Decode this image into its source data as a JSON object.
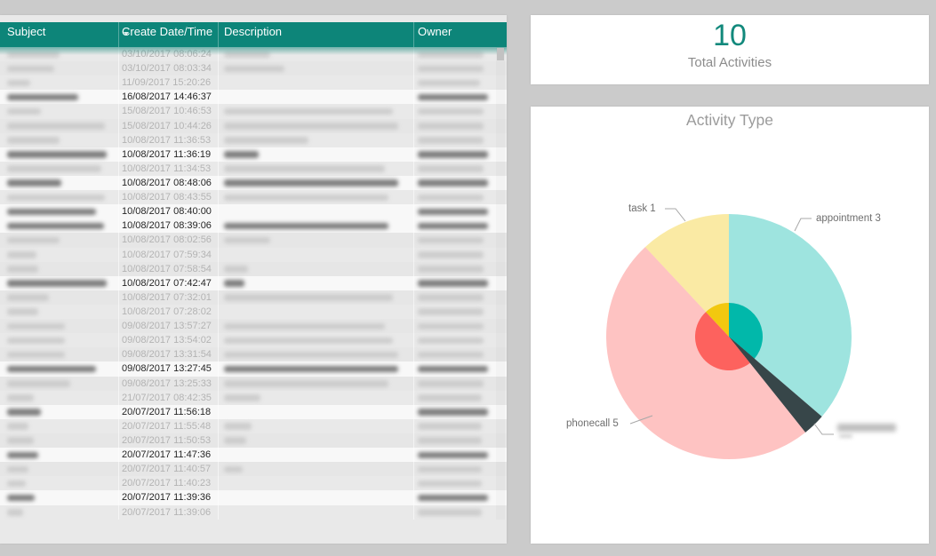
{
  "kpi": {
    "value": "10",
    "label": "Total Activities",
    "value_color": "#12897c"
  },
  "table": {
    "headers": {
      "subject": "Subject",
      "date": "Create Date/Time",
      "desc": "Description",
      "owner": "Owner"
    },
    "sorted_column": "Create Date/Time",
    "sort_direction": "descending",
    "header_color": "#0d8579",
    "note": "subject, description and owner cells are blurred/redacted in the source image; bar fields give redaction-bar widths as fractions, hl marks highlighted (white, dark-text) rows",
    "rows": [
      {
        "date": "03/10/2017 08:06:24",
        "hl": false,
        "subject_bar": 0.5,
        "desc_bar": 0.25,
        "owner_bar": 0.62
      },
      {
        "date": "03/10/2017 08:03:34",
        "hl": false,
        "subject_bar": 0.45,
        "desc_bar": 0.33,
        "owner_bar": 0.62
      },
      {
        "date": "11/09/2017 15:20:26",
        "hl": false,
        "subject_bar": 0.22,
        "desc_bar": 0,
        "owner_bar": 0.58
      },
      {
        "date": "16/08/2017 14:46:37",
        "hl": true,
        "subject_bar": 0.68,
        "desc_bar": 0,
        "owner_bar": 0.66
      },
      {
        "date": "15/08/2017 10:46:53",
        "hl": false,
        "subject_bar": 0.32,
        "desc_bar": 0.92,
        "owner_bar": 0.62
      },
      {
        "date": "15/08/2017 10:44:26",
        "hl": false,
        "subject_bar": 0.93,
        "desc_bar": 0.95,
        "owner_bar": 0.62
      },
      {
        "date": "10/08/2017 11:36:53",
        "hl": false,
        "subject_bar": 0.5,
        "desc_bar": 0.46,
        "owner_bar": 0.62
      },
      {
        "date": "10/08/2017 11:36:19",
        "hl": true,
        "subject_bar": 0.95,
        "desc_bar": 0.19,
        "owner_bar": 0.66
      },
      {
        "date": "10/08/2017 11:34:53",
        "hl": false,
        "subject_bar": 0.9,
        "desc_bar": 0.88,
        "owner_bar": 0.62
      },
      {
        "date": "10/08/2017 08:48:06",
        "hl": true,
        "subject_bar": 0.52,
        "desc_bar": 0.95,
        "owner_bar": 0.66
      },
      {
        "date": "10/08/2017 08:43:55",
        "hl": false,
        "subject_bar": 0.93,
        "desc_bar": 0.9,
        "owner_bar": 0.62
      },
      {
        "date": "10/08/2017 08:40:00",
        "hl": true,
        "subject_bar": 0.85,
        "desc_bar": 0,
        "owner_bar": 0.66
      },
      {
        "date": "10/08/2017 08:39:06",
        "hl": true,
        "subject_bar": 0.92,
        "desc_bar": 0.9,
        "owner_bar": 0.66
      },
      {
        "date": "10/08/2017 08:02:56",
        "hl": false,
        "subject_bar": 0.5,
        "desc_bar": 0.25,
        "owner_bar": 0.62
      },
      {
        "date": "10/08/2017 07:59:34",
        "hl": false,
        "subject_bar": 0.28,
        "desc_bar": 0,
        "owner_bar": 0.62
      },
      {
        "date": "10/08/2017 07:58:54",
        "hl": false,
        "subject_bar": 0.3,
        "desc_bar": 0.13,
        "owner_bar": 0.62
      },
      {
        "date": "10/08/2017 07:42:47",
        "hl": true,
        "subject_bar": 0.95,
        "desc_bar": 0.11,
        "owner_bar": 0.66
      },
      {
        "date": "10/08/2017 07:32:01",
        "hl": false,
        "subject_bar": 0.4,
        "desc_bar": 0.92,
        "owner_bar": 0.62
      },
      {
        "date": "10/08/2017 07:28:02",
        "hl": false,
        "subject_bar": 0.3,
        "desc_bar": 0,
        "owner_bar": 0.62
      },
      {
        "date": "09/08/2017 13:57:27",
        "hl": false,
        "subject_bar": 0.55,
        "desc_bar": 0.88,
        "owner_bar": 0.62
      },
      {
        "date": "09/08/2017 13:54:02",
        "hl": false,
        "subject_bar": 0.55,
        "desc_bar": 0.92,
        "owner_bar": 0.62
      },
      {
        "date": "09/08/2017 13:31:54",
        "hl": false,
        "subject_bar": 0.55,
        "desc_bar": 0.95,
        "owner_bar": 0.62
      },
      {
        "date": "09/08/2017 13:27:45",
        "hl": true,
        "subject_bar": 0.85,
        "desc_bar": 0.95,
        "owner_bar": 0.66
      },
      {
        "date": "09/08/2017 13:25:33",
        "hl": false,
        "subject_bar": 0.6,
        "desc_bar": 0.9,
        "owner_bar": 0.62
      },
      {
        "date": "21/07/2017 08:42:35",
        "hl": false,
        "subject_bar": 0.25,
        "desc_bar": 0.2,
        "owner_bar": 0.6
      },
      {
        "date": "20/07/2017 11:56:18",
        "hl": true,
        "subject_bar": 0.32,
        "desc_bar": 0,
        "owner_bar": 0.66
      },
      {
        "date": "20/07/2017 11:55:48",
        "hl": false,
        "subject_bar": 0.2,
        "desc_bar": 0.15,
        "owner_bar": 0.6
      },
      {
        "date": "20/07/2017 11:50:53",
        "hl": false,
        "subject_bar": 0.25,
        "desc_bar": 0.12,
        "owner_bar": 0.6
      },
      {
        "date": "20/07/2017 11:47:36",
        "hl": true,
        "subject_bar": 0.3,
        "desc_bar": 0,
        "owner_bar": 0.66
      },
      {
        "date": "20/07/2017 11:40:57",
        "hl": false,
        "subject_bar": 0.2,
        "desc_bar": 0.1,
        "owner_bar": 0.6
      },
      {
        "date": "20/07/2017 11:40:23",
        "hl": false,
        "subject_bar": 0.18,
        "desc_bar": 0,
        "owner_bar": 0.6
      },
      {
        "date": "20/07/2017 11:39:36",
        "hl": true,
        "subject_bar": 0.26,
        "desc_bar": 0,
        "owner_bar": 0.66
      },
      {
        "date": "20/07/2017 11:39:06",
        "hl": false,
        "subject_bar": 0.15,
        "desc_bar": 0,
        "owner_bar": 0.6
      }
    ]
  },
  "chart_data": [
    {
      "type": "card",
      "value": "10",
      "label": "Total Activities"
    },
    {
      "type": "pie",
      "title": "Activity Type",
      "legend_position": "none",
      "inner_highlight_ratio": 0.275,
      "outer_faded_opacity": 0.38,
      "slices": [
        {
          "label": "appointment",
          "value": 3,
          "display": "appointment 3",
          "color": "#01B8AA",
          "faded": true,
          "start_deg": 0,
          "end_deg": 130.7
        },
        {
          "label": "(redacted)",
          "value": null,
          "display": "",
          "color": "#374649",
          "faded": false,
          "start_deg": 130.7,
          "end_deg": 141.4
        },
        {
          "label": "phonecall",
          "value": 5,
          "display": "phonecall 5",
          "color": "#FD625E",
          "faded": true,
          "start_deg": 141.4,
          "end_deg": 317
        },
        {
          "label": "task",
          "value": 1,
          "display": "task 1",
          "color": "#F2C80F",
          "faded": true,
          "start_deg": 317,
          "end_deg": 360
        }
      ]
    }
  ]
}
